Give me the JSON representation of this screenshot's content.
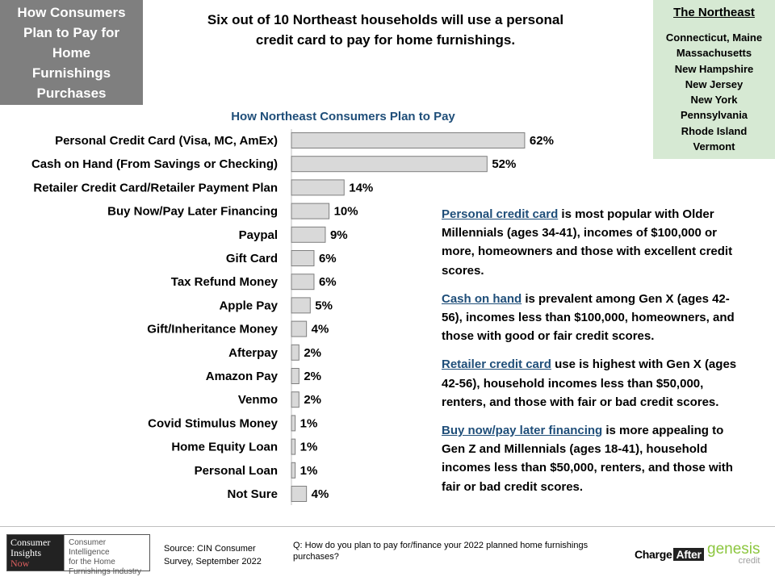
{
  "title_box": {
    "lines": [
      "How Consumers",
      "Plan to Pay for",
      "Home",
      "Furnishings",
      "Purchases"
    ]
  },
  "headline": {
    "line1": "Six out of 10 Northeast households  will use a personal",
    "line2": "credit card to pay for home furnishings."
  },
  "region": {
    "title": "The Northeast",
    "states": [
      "Connecticut, Maine",
      "Massachusetts",
      "New Hampshire",
      "New Jersey",
      "New York",
      "Pennsylvania",
      "Rhode Island",
      "Vermont"
    ]
  },
  "chart_data": {
    "type": "bar",
    "orientation": "horizontal",
    "title": "How Northeast Consumers Plan to Pay",
    "categories": [
      "Personal Credit Card (Visa, MC, AmEx)",
      "Cash on Hand (From Savings or Checking)",
      "Retailer Credit Card/Retailer Payment Plan",
      "Buy Now/Pay Later Financing",
      "Paypal",
      "Gift Card",
      "Tax Refund Money",
      "Apple Pay",
      "Gift/Inheritance Money",
      "Afterpay",
      "Amazon Pay",
      "Venmo",
      "Covid Stimulus Money",
      "Home Equity Loan",
      "Personal Loan",
      "Not Sure"
    ],
    "values": [
      62,
      52,
      14,
      10,
      9,
      6,
      6,
      5,
      4,
      2,
      2,
      2,
      1,
      1,
      1,
      4
    ],
    "value_labels": [
      "62%",
      "52%",
      "14%",
      "10%",
      "9%",
      "6%",
      "6%",
      "5%",
      "4%",
      "2%",
      "2%",
      "2%",
      "1%",
      "1%",
      "1%",
      "4%"
    ],
    "bar_color": "#d9d9d9",
    "bar_border": "#7f7f7f",
    "grid": false
  },
  "insights": [
    {
      "highlight": "Personal credit card",
      "rest": " is most popular with Older Millennials (ages 34-41), incomes of $100,000 or more, homeowners and those with excellent credit scores."
    },
    {
      "highlight": "Cash on hand",
      "rest": " is prevalent among Gen X (ages 42-56), incomes less than $100,000, homeowners, and those with good or fair credit scores."
    },
    {
      "highlight": "Retailer credit card",
      "rest": " use is highest with Gen X (ages 42-56), household incomes less than $50,000, renters, and those with fair or bad credit scores."
    },
    {
      "highlight": "Buy now/pay later financing",
      "rest": " is more appealing to Gen Z and Millennials (ages 18-41), household incomes less than $50,000, renters, and those with fair or bad credit scores."
    }
  ],
  "footer": {
    "logo_cin_dark": [
      "Consumer",
      "Insights"
    ],
    "logo_cin_now": "Now",
    "logo_cin_light": [
      "Consumer Intelligence",
      "for the Home",
      "Furnishings Industry"
    ],
    "source_line1": "Source: CIN Consumer",
    "source_line2": "Survey, September  2022",
    "question": "Q: How do you plan to pay for/finance your 2022 planned home furnishings purchases?",
    "charge_after_a": "Charge",
    "charge_after_b": "After",
    "genesis": "genesis",
    "genesis_sub": "credit"
  },
  "colors": {
    "title_box_bg": "#7f7f7f",
    "region_bg": "#d6e9d3",
    "accent_blue": "#1f4e79"
  }
}
